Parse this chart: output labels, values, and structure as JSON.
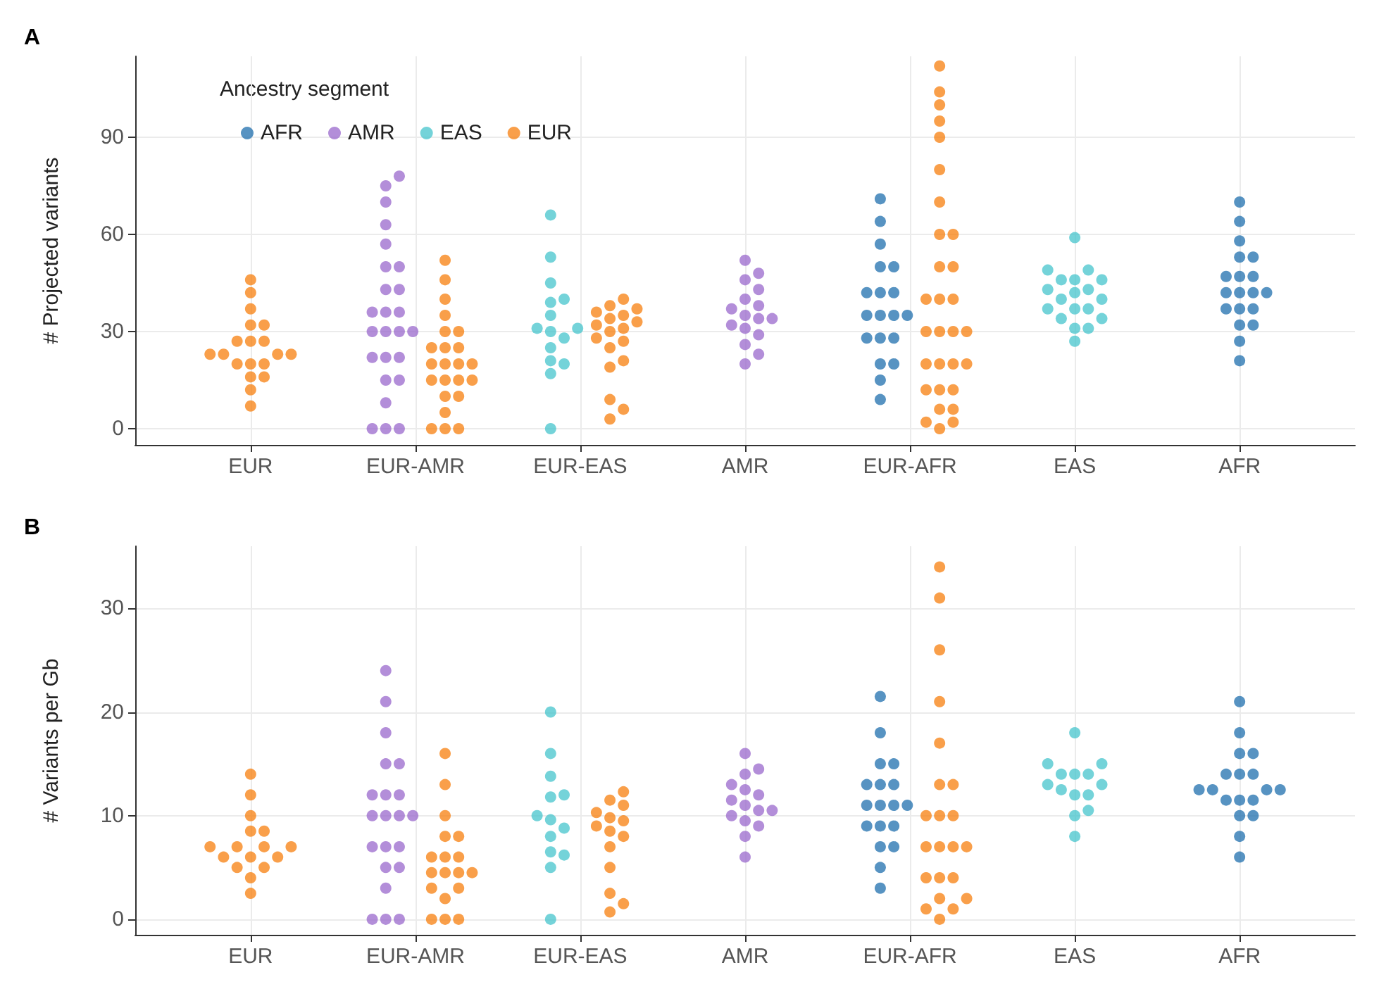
{
  "chart_data": [
    {
      "type": "scatter",
      "title": "A",
      "ylabel": "# Projected variants",
      "legend_title": "Ancestry segment",
      "legend": "top left",
      "grid": true,
      "marker": "circle",
      "categories": [
        "EUR",
        "EUR-AMR",
        "EUR-EAS",
        "AMR",
        "EUR-AFR",
        "EAS",
        "AFR"
      ],
      "ylim": [
        -5,
        115
      ],
      "yticks": [
        0,
        30,
        60,
        90
      ],
      "series": [
        {
          "name": "AFR",
          "color": "#1f6fae",
          "x": [
            "EUR-AFR",
            "EUR-AFR",
            "EUR-AFR",
            "EUR-AFR",
            "EUR-AFR",
            "EUR-AFR",
            "EUR-AFR",
            "EUR-AFR",
            "EUR-AFR",
            "EUR-AFR",
            "EUR-AFR",
            "EUR-AFR",
            "EUR-AFR",
            "EUR-AFR",
            "EUR-AFR",
            "EUR-AFR",
            "EUR-AFR",
            "EUR-AFR",
            "EUR-AFR",
            "AFR",
            "AFR",
            "AFR",
            "AFR",
            "AFR",
            "AFR",
            "AFR",
            "AFR",
            "AFR",
            "AFR",
            "AFR",
            "AFR",
            "AFR",
            "AFR",
            "AFR",
            "AFR",
            "AFR",
            "AFR",
            "AFR"
          ],
          "values": [
            9,
            15,
            20,
            20,
            28,
            28,
            28,
            35,
            35,
            35,
            35,
            42,
            42,
            42,
            50,
            50,
            57,
            64,
            71,
            21,
            27,
            32,
            32,
            37,
            37,
            37,
            42,
            42,
            42,
            42,
            47,
            47,
            47,
            53,
            53,
            58,
            64,
            70
          ]
        },
        {
          "name": "AMR",
          "color": "#9a68cc",
          "x": [
            "EUR-AMR",
            "EUR-AMR",
            "EUR-AMR",
            "EUR-AMR",
            "EUR-AMR",
            "EUR-AMR",
            "EUR-AMR",
            "EUR-AMR",
            "EUR-AMR",
            "EUR-AMR",
            "EUR-AMR",
            "EUR-AMR",
            "EUR-AMR",
            "EUR-AMR",
            "EUR-AMR",
            "EUR-AMR",
            "EUR-AMR",
            "EUR-AMR",
            "EUR-AMR",
            "EUR-AMR",
            "EUR-AMR",
            "EUR-AMR",
            "EUR-AMR",
            "EUR-AMR",
            "EUR-AMR",
            "AMR",
            "AMR",
            "AMR",
            "AMR",
            "AMR",
            "AMR",
            "AMR",
            "AMR",
            "AMR",
            "AMR",
            "AMR",
            "AMR",
            "AMR",
            "AMR",
            "AMR",
            "AMR"
          ],
          "values": [
            0,
            0,
            0,
            8,
            15,
            15,
            22,
            22,
            22,
            30,
            30,
            30,
            30,
            36,
            36,
            36,
            43,
            43,
            50,
            50,
            57,
            63,
            70,
            75,
            78,
            52,
            48,
            46,
            43,
            40,
            38,
            37,
            35,
            34,
            34,
            32,
            31,
            29,
            26,
            23,
            20
          ]
        },
        {
          "name": "EAS",
          "color": "#45c4cc",
          "x": [
            "EUR-EAS",
            "EUR-EAS",
            "EUR-EAS",
            "EUR-EAS",
            "EUR-EAS",
            "EUR-EAS",
            "EUR-EAS",
            "EUR-EAS",
            "EUR-EAS",
            "EUR-EAS",
            "EUR-EAS",
            "EUR-EAS",
            "EUR-EAS",
            "EUR-EAS",
            "EUR-EAS",
            "EAS",
            "EAS",
            "EAS",
            "EAS",
            "EAS",
            "EAS",
            "EAS",
            "EAS",
            "EAS",
            "EAS",
            "EAS",
            "EAS",
            "EAS",
            "EAS",
            "EAS",
            "EAS",
            "EAS",
            "EAS",
            "EAS"
          ],
          "values": [
            66,
            53,
            45,
            40,
            39,
            35,
            31,
            31,
            30,
            28,
            25,
            21,
            20,
            17,
            0,
            59,
            49,
            49,
            46,
            46,
            46,
            43,
            43,
            42,
            40,
            40,
            37,
            37,
            37,
            34,
            34,
            31,
            31,
            27
          ]
        },
        {
          "name": "EUR",
          "color": "#f77f0e",
          "x": [
            "EUR",
            "EUR",
            "EUR",
            "EUR",
            "EUR",
            "EUR",
            "EUR",
            "EUR",
            "EUR",
            "EUR",
            "EUR",
            "EUR",
            "EUR",
            "EUR",
            "EUR",
            "EUR",
            "EUR",
            "EUR",
            "EUR",
            "EUR-AMR",
            "EUR-AMR",
            "EUR-AMR",
            "EUR-AMR",
            "EUR-AMR",
            "EUR-AMR",
            "EUR-AMR",
            "EUR-AMR",
            "EUR-AMR",
            "EUR-AMR",
            "EUR-AMR",
            "EUR-AMR",
            "EUR-AMR",
            "EUR-AMR",
            "EUR-AMR",
            "EUR-AMR",
            "EUR-AMR",
            "EUR-AMR",
            "EUR-AMR",
            "EUR-AMR",
            "EUR-AMR",
            "EUR-AMR",
            "EUR-AMR",
            "EUR-EAS",
            "EUR-EAS",
            "EUR-EAS",
            "EUR-EAS",
            "EUR-EAS",
            "EUR-EAS",
            "EUR-EAS",
            "EUR-EAS",
            "EUR-EAS",
            "EUR-EAS",
            "EUR-EAS",
            "EUR-EAS",
            "EUR-EAS",
            "EUR-EAS",
            "EUR-EAS",
            "EUR-EAS",
            "EUR-EAS",
            "EUR-EAS",
            "EUR-AFR",
            "EUR-AFR",
            "EUR-AFR",
            "EUR-AFR",
            "EUR-AFR",
            "EUR-AFR",
            "EUR-AFR",
            "EUR-AFR",
            "EUR-AFR",
            "EUR-AFR",
            "EUR-AFR",
            "EUR-AFR",
            "EUR-AFR",
            "EUR-AFR",
            "EUR-AFR",
            "EUR-AFR",
            "EUR-AFR",
            "EUR-AFR",
            "EUR-AFR",
            "EUR-AFR",
            "EUR-AFR",
            "EUR-AFR",
            "EUR-AFR",
            "EUR-AFR",
            "EUR-AFR",
            "EUR-AFR",
            "EUR-AFR",
            "EUR-AFR",
            "EUR-AFR",
            "EUR-AFR"
          ],
          "values": [
            7,
            12,
            16,
            16,
            20,
            20,
            20,
            23,
            23,
            23,
            23,
            27,
            27,
            27,
            32,
            32,
            37,
            42,
            46,
            0,
            0,
            0,
            5,
            10,
            10,
            15,
            15,
            15,
            15,
            20,
            20,
            20,
            20,
            25,
            25,
            25,
            30,
            30,
            35,
            40,
            46,
            52,
            40,
            38,
            37,
            35,
            34,
            33,
            31,
            30,
            28,
            27,
            25,
            21,
            19,
            9,
            6,
            3,
            36,
            32,
            0,
            2,
            2,
            6,
            6,
            12,
            12,
            12,
            20,
            20,
            20,
            20,
            30,
            30,
            30,
            30,
            40,
            40,
            40,
            50,
            50,
            60,
            60,
            70,
            80,
            90,
            95,
            100,
            104,
            112
          ]
        }
      ]
    },
    {
      "type": "scatter",
      "title": "B",
      "ylabel": "# Variants per Gb",
      "grid": true,
      "marker": "circle",
      "categories": [
        "EUR",
        "EUR-AMR",
        "EUR-EAS",
        "AMR",
        "EUR-AFR",
        "EAS",
        "AFR"
      ],
      "ylim": [
        -1.5,
        36
      ],
      "yticks": [
        0,
        10,
        20,
        30
      ],
      "series": [
        {
          "color": "#1f6fae",
          "x": [
            "EUR-AFR",
            "EUR-AFR",
            "EUR-AFR",
            "EUR-AFR",
            "EUR-AFR",
            "EUR-AFR",
            "EUR-AFR",
            "EUR-AFR",
            "EUR-AFR",
            "EUR-AFR",
            "EUR-AFR",
            "EUR-AFR",
            "EUR-AFR",
            "EUR-AFR",
            "EUR-AFR",
            "EUR-AFR",
            "EUR-AFR",
            "EUR-AFR",
            "AFR",
            "AFR",
            "AFR",
            "AFR",
            "AFR",
            "AFR",
            "AFR",
            "AFR",
            "AFR",
            "AFR",
            "AFR",
            "AFR",
            "AFR",
            "AFR",
            "AFR",
            "AFR",
            "AFR",
            "AFR"
          ],
          "values": [
            3,
            5,
            7,
            7,
            9,
            9,
            9,
            11,
            11,
            11,
            11,
            13,
            13,
            13,
            15,
            15,
            18,
            21.5,
            6,
            8,
            10,
            10,
            11.5,
            11.5,
            11.5,
            12.5,
            12.5,
            12.5,
            12.5,
            14,
            14,
            14,
            16,
            16,
            18,
            21
          ]
        },
        {
          "color": "#9a68cc",
          "x": [
            "EUR-AMR",
            "EUR-AMR",
            "EUR-AMR",
            "EUR-AMR",
            "EUR-AMR",
            "EUR-AMR",
            "EUR-AMR",
            "EUR-AMR",
            "EUR-AMR",
            "EUR-AMR",
            "EUR-AMR",
            "EUR-AMR",
            "EUR-AMR",
            "EUR-AMR",
            "EUR-AMR",
            "EUR-AMR",
            "EUR-AMR",
            "EUR-AMR",
            "EUR-AMR",
            "EUR-AMR",
            "EUR-AMR",
            "AMR",
            "AMR",
            "AMR",
            "AMR",
            "AMR",
            "AMR",
            "AMR",
            "AMR",
            "AMR",
            "AMR",
            "AMR",
            "AMR",
            "AMR",
            "AMR",
            "AMR"
          ],
          "values": [
            0,
            0,
            0,
            3,
            5,
            5,
            7,
            7,
            7,
            10,
            10,
            10,
            10,
            12,
            12,
            12,
            15,
            15,
            18,
            21,
            24,
            16,
            14.5,
            14,
            13,
            12.5,
            12,
            11.5,
            11,
            10.5,
            10.5,
            10,
            9.5,
            9,
            8,
            6
          ]
        },
        {
          "color": "#45c4cc",
          "x": [
            "EUR-EAS",
            "EUR-EAS",
            "EUR-EAS",
            "EUR-EAS",
            "EUR-EAS",
            "EUR-EAS",
            "EUR-EAS",
            "EUR-EAS",
            "EUR-EAS",
            "EUR-EAS",
            "EUR-EAS",
            "EUR-EAS",
            "EUR-EAS",
            "EAS",
            "EAS",
            "EAS",
            "EAS",
            "EAS",
            "EAS",
            "EAS",
            "EAS",
            "EAS",
            "EAS",
            "EAS",
            "EAS",
            "EAS",
            "EAS"
          ],
          "values": [
            20,
            16,
            13.8,
            12,
            11.8,
            10,
            9.6,
            8.8,
            8,
            6.5,
            6.2,
            5,
            0,
            18,
            15,
            15,
            14,
            14,
            14,
            13,
            13,
            12.5,
            12,
            12,
            10.5,
            10,
            8
          ]
        },
        {
          "color": "#f77f0e",
          "x": [
            "EUR",
            "EUR",
            "EUR",
            "EUR",
            "EUR",
            "EUR",
            "EUR",
            "EUR",
            "EUR",
            "EUR",
            "EUR",
            "EUR",
            "EUR",
            "EUR",
            "EUR",
            "EUR",
            "EUR-AMR",
            "EUR-AMR",
            "EUR-AMR",
            "EUR-AMR",
            "EUR-AMR",
            "EUR-AMR",
            "EUR-AMR",
            "EUR-AMR",
            "EUR-AMR",
            "EUR-AMR",
            "EUR-AMR",
            "EUR-AMR",
            "EUR-AMR",
            "EUR-AMR",
            "EUR-AMR",
            "EUR-AMR",
            "EUR-AMR",
            "EUR-AMR",
            "EUR-EAS",
            "EUR-EAS",
            "EUR-EAS",
            "EUR-EAS",
            "EUR-EAS",
            "EUR-EAS",
            "EUR-EAS",
            "EUR-EAS",
            "EUR-EAS",
            "EUR-EAS",
            "EUR-EAS",
            "EUR-EAS",
            "EUR-EAS",
            "EUR-EAS",
            "EUR-AFR",
            "EUR-AFR",
            "EUR-AFR",
            "EUR-AFR",
            "EUR-AFR",
            "EUR-AFR",
            "EUR-AFR",
            "EUR-AFR",
            "EUR-AFR",
            "EUR-AFR",
            "EUR-AFR",
            "EUR-AFR",
            "EUR-AFR",
            "EUR-AFR",
            "EUR-AFR",
            "EUR-AFR",
            "EUR-AFR",
            "EUR-AFR",
            "EUR-AFR",
            "EUR-AFR",
            "EUR-AFR",
            "EUR-AFR"
          ],
          "values": [
            2.5,
            4,
            5,
            5,
            6,
            6,
            6,
            7,
            7,
            7,
            7,
            8.5,
            8.5,
            10,
            12,
            14,
            0,
            0,
            0,
            2,
            3,
            3,
            4.5,
            4.5,
            4.5,
            4.5,
            6,
            6,
            6,
            8,
            8,
            10,
            13,
            16,
            12.3,
            11.5,
            11,
            10.3,
            9.8,
            9.5,
            9,
            8.5,
            8,
            7,
            5,
            2.5,
            1.5,
            0.7,
            0,
            1,
            1,
            2,
            2,
            4,
            4,
            4,
            7,
            7,
            7,
            7,
            10,
            10,
            10,
            13,
            13,
            17,
            21,
            26,
            31,
            34
          ]
        }
      ]
    }
  ]
}
